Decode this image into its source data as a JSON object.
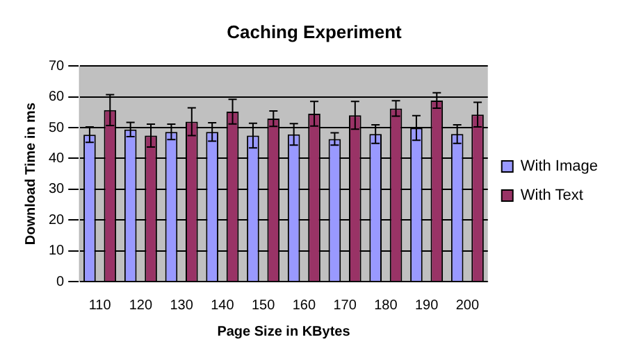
{
  "chart_data": {
    "type": "bar",
    "title": "Caching Experiment",
    "xlabel": "Page Size in KBytes",
    "ylabel": "Download Time in ms",
    "categories": [
      "110",
      "120",
      "130",
      "140",
      "150",
      "160",
      "170",
      "180",
      "190",
      "200"
    ],
    "series": [
      {
        "name": "With Image",
        "color": "#9999ff",
        "values": [
          47.7,
          49.4,
          48.6,
          48.6,
          47.4,
          47.8,
          46.3,
          47.9,
          49.9,
          47.9
        ],
        "errors": [
          2.5,
          2.3,
          2.5,
          3,
          4,
          3.5,
          2,
          3,
          4,
          3
        ]
      },
      {
        "name": "With Text",
        "color": "#993366",
        "values": [
          55.7,
          47.4,
          51.9,
          55.2,
          52.9,
          54.5,
          54,
          56.2,
          58.8,
          54.2
        ],
        "errors": [
          5,
          3.7,
          4.5,
          4,
          2.5,
          4,
          4.5,
          2.5,
          2.5,
          4
        ]
      }
    ],
    "ylim": [
      0,
      70
    ],
    "yticks": [
      0,
      10,
      20,
      30,
      40,
      50,
      60,
      70
    ],
    "grid": "y",
    "legend": "right"
  }
}
